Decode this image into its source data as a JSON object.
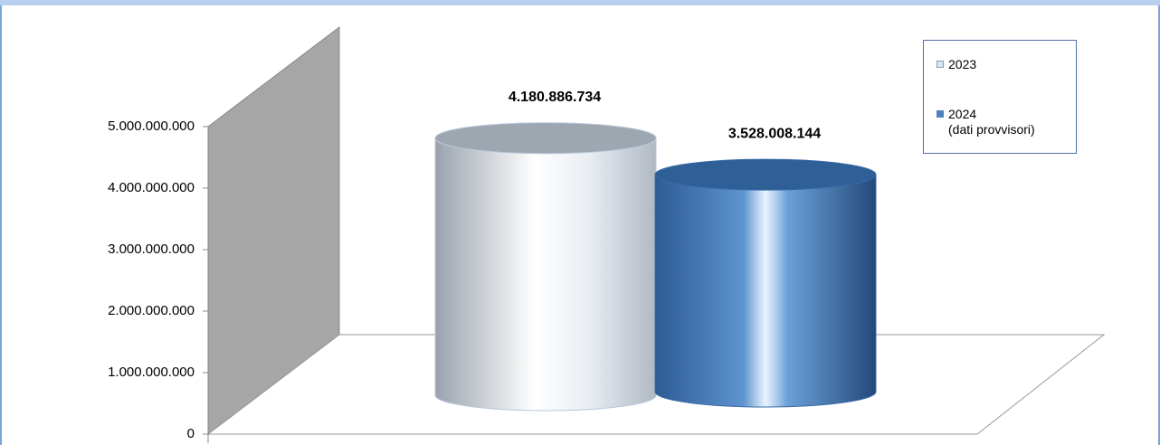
{
  "chart_data": {
    "type": "cylinder",
    "categories": [
      null
    ],
    "series": [
      {
        "name": "2023",
        "color": "#dbe5f1",
        "values": [
          4180886734
        ],
        "value_labels": [
          "4.180.886.734"
        ]
      },
      {
        "name": "2024\n(dati provvisori)",
        "color": "#4f81bd",
        "values": [
          3528008144
        ],
        "value_labels": [
          "3.528.008.144"
        ]
      }
    ],
    "ylim": [
      0,
      5000000000
    ],
    "yticks": [
      0,
      {
        "value": 1000000000,
        "label": "1.000.000.000"
      },
      {
        "value": 2000000000,
        "label": "2.000.000.000"
      },
      {
        "value": 3000000000,
        "label": "3.000.000.000"
      },
      {
        "value": 4000000000,
        "label": "4.000.000.000"
      },
      {
        "value": 5000000000,
        "label": "5.000.000.000"
      }
    ],
    "legend": "top-right"
  }
}
